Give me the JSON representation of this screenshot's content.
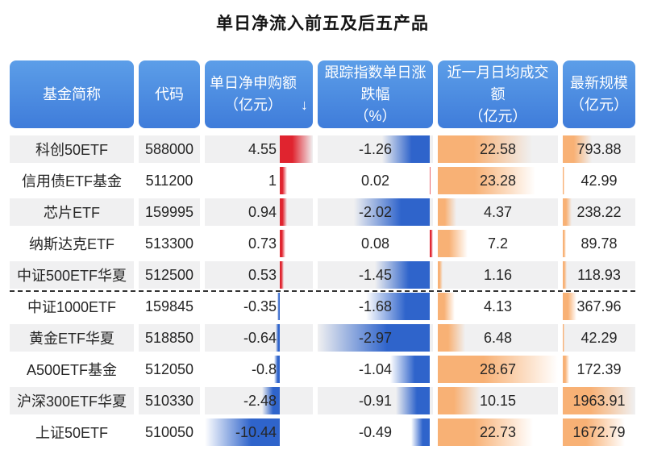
{
  "title": "单日净流入前五及后五产品",
  "sort_icon": "↓",
  "colors": {
    "header_top": "#5C9EE8",
    "header_bottom": "#3F7CDA",
    "positive_bar": "#E0242F",
    "negative_bar": "#2F64CB",
    "orange_bar": "#F8B175",
    "row_alt_bg": "#F0F0F1",
    "divider": "#333333",
    "header_text": "#FFFFFF",
    "cell_text": "#262626"
  },
  "chart_data": {
    "type": "table",
    "title": "单日净流入前五及后五产品",
    "columns": [
      {
        "key": "name",
        "label": "基金简称"
      },
      {
        "key": "code",
        "label": "代码"
      },
      {
        "key": "net",
        "label": "单日净申购额\n（亿元）",
        "sort": "desc",
        "bar": {
          "min": -10.44,
          "max": 4.55,
          "pos_color": "#E0242F",
          "neg_color": "#2F64CB"
        }
      },
      {
        "key": "chg",
        "label": "跟踪指数单日涨\n跌幅\n（%）",
        "bar": {
          "min": -2.97,
          "max": 0.08,
          "pos_color": "#E0242F",
          "neg_color": "#2F64CB"
        }
      },
      {
        "key": "turnover",
        "label": "近一月日均成交\n额\n（亿元）",
        "bar": {
          "min": 0,
          "max": 28.67,
          "pos_color": "#F8B175",
          "neg_color": "#F8B175"
        }
      },
      {
        "key": "scale",
        "label": "最新规模\n（亿元）",
        "bar": {
          "min": 0,
          "max": 1963.91,
          "pos_color": "#F8B175",
          "neg_color": "#F8B175"
        }
      }
    ],
    "rows": [
      {
        "name": "科创50ETF",
        "code": "588000",
        "net": 4.55,
        "chg": -1.26,
        "turnover": 22.58,
        "scale": 793.88
      },
      {
        "name": "信用债ETF基金",
        "code": "511200",
        "net": 1,
        "chg": 0.02,
        "turnover": 23.28,
        "scale": 42.99
      },
      {
        "name": "芯片ETF",
        "code": "159995",
        "net": 0.94,
        "chg": -2.02,
        "turnover": 4.37,
        "scale": 238.22
      },
      {
        "name": "纳斯达克ETF",
        "code": "513300",
        "net": 0.73,
        "chg": 0.08,
        "turnover": 7.2,
        "scale": 89.78
      },
      {
        "name": "中证500ETF华夏",
        "code": "512500",
        "net": 0.53,
        "chg": -1.45,
        "turnover": 1.16,
        "scale": 118.93
      },
      {
        "name": "中证1000ETF",
        "code": "159845",
        "net": -0.35,
        "chg": -1.68,
        "turnover": 4.13,
        "scale": 367.96
      },
      {
        "name": "黄金ETF华夏",
        "code": "518850",
        "net": -0.64,
        "chg": -2.97,
        "turnover": 6.48,
        "scale": 42.29
      },
      {
        "name": "A500ETF基金",
        "code": "512050",
        "net": -0.8,
        "chg": -1.04,
        "turnover": 28.67,
        "scale": 172.39
      },
      {
        "name": "沪深300ETF华夏",
        "code": "510330",
        "net": -2.48,
        "chg": -0.91,
        "turnover": 10.15,
        "scale": 1963.91
      },
      {
        "name": "上证50ETF",
        "code": "510050",
        "net": -10.44,
        "chg": -0.49,
        "turnover": 22.73,
        "scale": 1672.79
      }
    ],
    "divider_after_row": 5,
    "notes": "top 5 net inflow products above dashed divider, bottom 5 below; bars fade from anchor toward tip"
  }
}
